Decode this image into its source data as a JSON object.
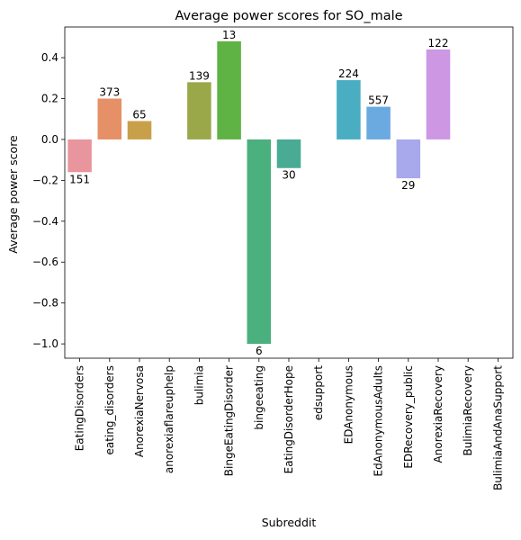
{
  "chart_data": {
    "type": "bar",
    "title": "Average power scores for SO_male",
    "xlabel": "Subreddit",
    "ylabel": "Average power score",
    "ylim": [
      -1.07,
      0.55
    ],
    "yticks": [
      -1.0,
      -0.8,
      -0.6,
      -0.4,
      -0.2,
      0.0,
      0.2,
      0.4
    ],
    "ytick_labels": [
      "−1.0",
      "−0.8",
      "−0.6",
      "−0.4",
      "−0.2",
      "0.0",
      "0.2",
      "0.4"
    ],
    "grid": false,
    "categories": [
      "EatingDisorders",
      "eating_disorders",
      "AnorexiaNervosa",
      "anorexiaflareuphelp",
      "bulimia",
      "BingeEatingDisorder",
      "bingeeating",
      "EatingDisorderHope",
      "edsupport",
      "EDAnonymous",
      "EdAnonymousAdults",
      "EDRecovery_public",
      "AnorexiaRecovery",
      "BulimiaRecovery",
      "BulimiaAndAnaSupport"
    ],
    "values": [
      -0.16,
      0.2,
      0.09,
      null,
      0.28,
      0.48,
      -1.0,
      -0.14,
      null,
      0.29,
      0.16,
      -0.19,
      0.44,
      null,
      null
    ],
    "counts": [
      "151",
      "373",
      "65",
      "",
      "139",
      "13",
      "6",
      "30",
      "",
      "224",
      "557",
      "29",
      "122",
      "",
      ""
    ],
    "colors": [
      "#e8959d",
      "#e59067",
      "#c9a04a",
      "#b7a84a",
      "#9aa84a",
      "#5fb244",
      "#4ab07e",
      "#4aab94",
      "#4cada8",
      "#4aaec3",
      "#6aaae0",
      "#a8a8ec",
      "#cd97e4",
      "#e48fce",
      "#e791b1"
    ]
  }
}
